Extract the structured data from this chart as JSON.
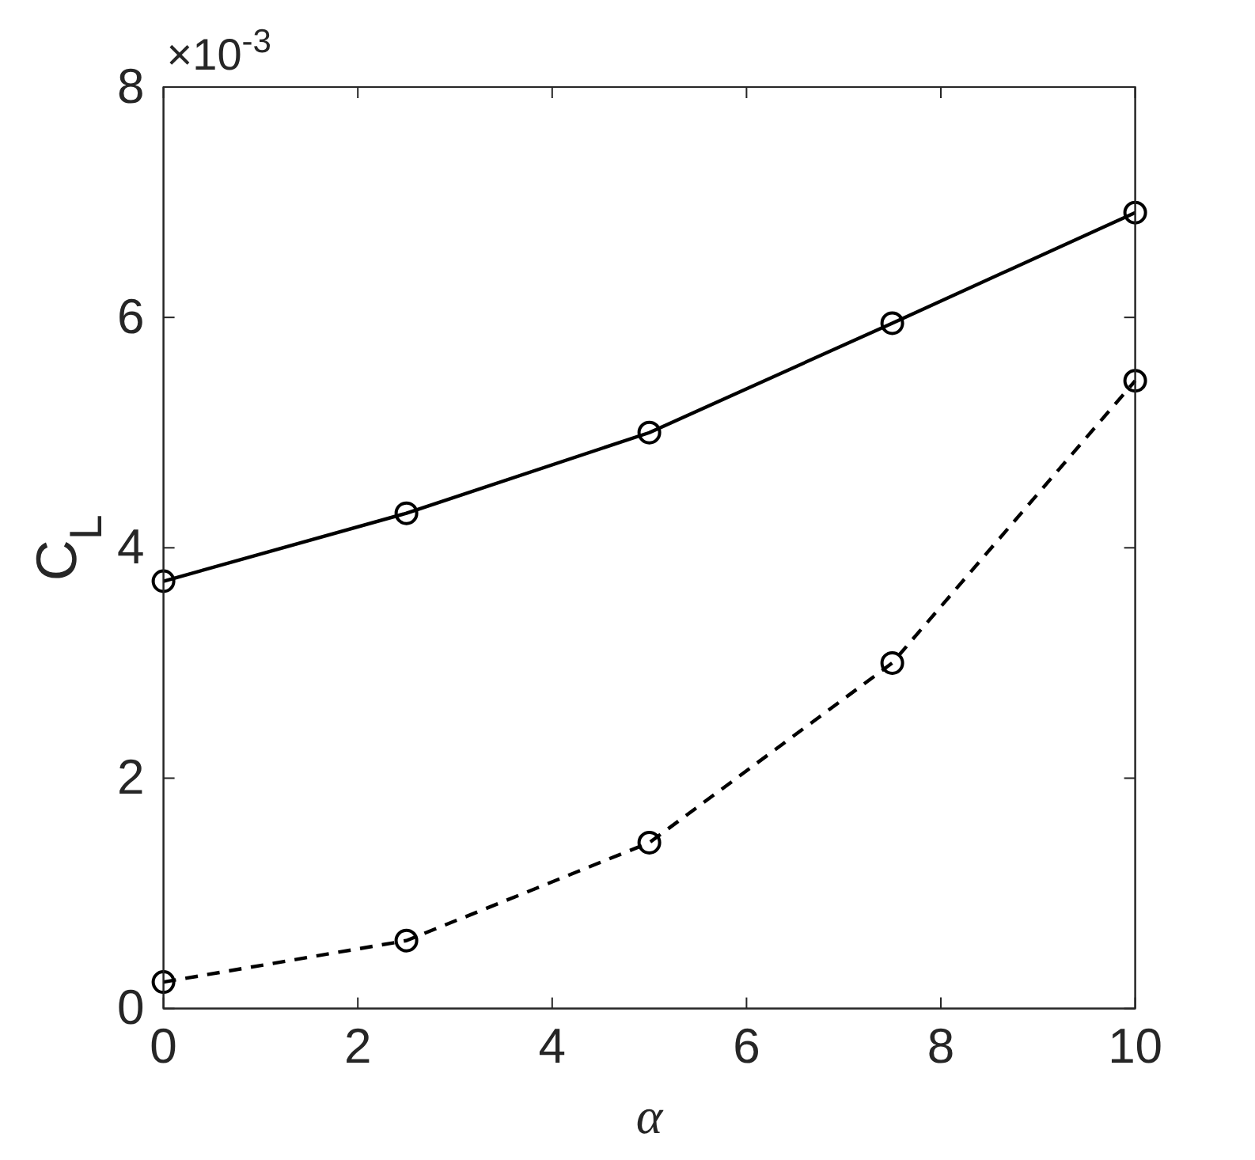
{
  "chart_data": {
    "type": "line",
    "xlabel": "α",
    "ylabel": "C$_{L}$",
    "annotations": [
      "×10$^{-3}$"
    ],
    "x": [
      0,
      2.5,
      5,
      7.5,
      10
    ],
    "series": [
      {
        "color": "#000000",
        "line_style": "solid",
        "values": [
          3.71,
          4.3,
          5.0,
          5.95,
          6.91
        ]
      },
      {
        "color": "#000000",
        "line_style": "dashed",
        "values": [
          0.23,
          0.59,
          1.44,
          3.0,
          5.45
        ]
      }
    ],
    "xlim": [
      0,
      10
    ],
    "xticks": [
      0,
      2,
      4,
      6,
      8,
      10
    ],
    "ylim": [
      0,
      8
    ],
    "yticks": [
      0,
      2,
      4,
      6,
      8
    ],
    "marker": "circle"
  }
}
